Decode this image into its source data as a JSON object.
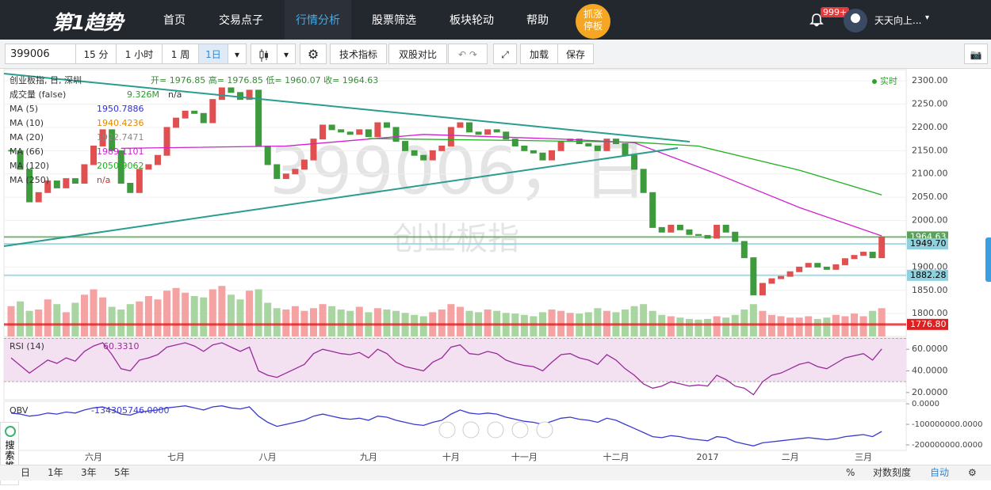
{
  "nav": {
    "logo": "第1趋势",
    "items": [
      "首页",
      "交易点子",
      "行情分析",
      "股票筛选",
      "板块轮动",
      "帮助"
    ],
    "active": 2,
    "hot_button": [
      "抓涨",
      "停板"
    ],
    "notification": "999+",
    "user": "天天向上..."
  },
  "toolbar": {
    "symbol": "399006",
    "periods": [
      "15 分",
      "1 小时",
      "1 周",
      "1日"
    ],
    "active_period": 3,
    "indicators": "技术指标",
    "compare": "双股对比",
    "load": "加载",
    "save": "保存"
  },
  "chart_data": {
    "type": "candlestick",
    "watermark_symbol": "399006，日",
    "watermark_name": "创业板指",
    "header": "创业板指, 日, 深圳",
    "ohlc_readout": "开= 1976.85 高= 1976.85 低= 1960.07 收= 1964.63",
    "realtime": "实时",
    "categories": [
      null,
      null,
      null,
      null,
      null,
      null,
      null,
      null,
      null,
      "六月",
      null,
      null,
      null,
      null,
      null,
      null,
      null,
      null,
      "七月",
      null,
      null,
      null,
      null,
      null,
      null,
      null,
      null,
      null,
      "八月",
      null,
      null,
      null,
      null,
      null,
      null,
      null,
      null,
      null,
      null,
      "九月",
      null,
      null,
      null,
      null,
      null,
      null,
      null,
      null,
      "十月",
      null,
      null,
      null,
      null,
      null,
      null,
      null,
      "十一月",
      null,
      null,
      null,
      null,
      null,
      null,
      null,
      null,
      null,
      "十二月",
      null,
      null,
      null,
      null,
      null,
      null,
      null,
      null,
      null,
      "2017",
      null,
      null,
      null,
      null,
      null,
      null,
      null,
      null,
      "二月",
      null,
      null,
      null,
      null,
      null,
      null,
      null,
      "三月",
      null,
      null
    ],
    "close": [
      2150,
      2110,
      2040,
      2060,
      2085,
      2070,
      2090,
      2080,
      2120,
      2160,
      2195,
      2150,
      2080,
      2060,
      2110,
      2120,
      2140,
      2200,
      2220,
      2235,
      2230,
      2210,
      2260,
      2285,
      2275,
      2260,
      2280,
      2160,
      2120,
      2090,
      2100,
      2110,
      2130,
      2175,
      2205,
      2195,
      2190,
      2185,
      2195,
      2180,
      2210,
      2200,
      2170,
      2150,
      2140,
      2130,
      2150,
      2160,
      2200,
      2210,
      2190,
      2185,
      2195,
      2190,
      2175,
      2160,
      2150,
      2145,
      2130,
      2150,
      2170,
      2175,
      2165,
      2160,
      2150,
      2175,
      2165,
      2140,
      2110,
      2060,
      1985,
      1975,
      1990,
      1980,
      1970,
      1968,
      1962,
      1990,
      1975,
      1955,
      1920,
      1840,
      1865,
      1875,
      1880,
      1890,
      1900,
      1908,
      1900,
      1895,
      1905,
      1918,
      1925,
      1932,
      1920,
      1964.63
    ],
    "up_color": "#e05050",
    "down_color": "#3d9a3d",
    "ylim": [
      1751,
      2324
    ],
    "yticks": [
      {
        "value": 1800,
        "label": "1800.00"
      },
      {
        "value": 1850,
        "label": "1850.00"
      },
      {
        "value": 1900,
        "label": "1900.00"
      },
      {
        "value": 1950,
        "label": "1950.00"
      },
      {
        "value": 2000,
        "label": "2000.00"
      },
      {
        "value": 2050,
        "label": "2050.00"
      },
      {
        "value": 2100,
        "label": "2100.00"
      },
      {
        "value": 2150,
        "label": "2150.00"
      },
      {
        "value": 2200,
        "label": "2200.00"
      },
      {
        "value": 2250,
        "label": "2250.00"
      },
      {
        "value": 2300,
        "label": "2300.00"
      }
    ],
    "grid": true,
    "moving_averages": [
      {
        "name": "MA (5)",
        "readout": "1950.7886",
        "color": "#3030d0"
      },
      {
        "name": "MA (10)",
        "readout": "1940.4236",
        "color": "#e08a00"
      },
      {
        "name": "MA (20)",
        "readout": "1922.7471",
        "color": "#888888"
      },
      {
        "name": "MA (66)",
        "readout": "1989.1101",
        "color": "#d020d0",
        "x": [
          12,
          30,
          45,
          60,
          68,
          77,
          86,
          95
        ],
        "values": [
          2155,
          2160,
          2185,
          2175,
          2167,
          2100,
          2028,
          1967
        ]
      },
      {
        "name": "MA (120)",
        "readout": "2050.9062",
        "color": "#20b020",
        "x": [
          39,
          55,
          68,
          75,
          86,
          95
        ],
        "values": [
          2176,
          2172,
          2168,
          2160,
          2108,
          2055
        ]
      },
      {
        "name": "MA (250)",
        "readout": "n/a",
        "color": "#d03030"
      }
    ],
    "price_lines": [
      {
        "value": 1964.63,
        "color": "#5aa05a",
        "text_color": "#ffffff"
      },
      {
        "value": 1949.7,
        "label": "1949.70",
        "color": "#8fd0de",
        "text_color": "#000000"
      },
      {
        "value": 1882.28,
        "color": "#8fd0de",
        "text_color": "#000000"
      },
      {
        "value": 1776.8,
        "label": "1776.80",
        "color": "#e02020",
        "text_color": "#ffffff"
      }
    ],
    "volume": {
      "name": "成交量 (false)",
      "readout": "9.326M",
      "extra": "n/a",
      "ylim": [
        0,
        100
      ],
      "up_color": "#f4a2a2",
      "down_color": "#a9d5a0",
      "values": [
        45,
        52,
        38,
        40,
        55,
        48,
        36,
        50,
        62,
        70,
        58,
        44,
        40,
        48,
        52,
        60,
        55,
        68,
        72,
        65,
        60,
        58,
        70,
        75,
        62,
        55,
        68,
        70,
        50,
        42,
        40,
        45,
        38,
        42,
        48,
        45,
        40,
        38,
        44,
        36,
        42,
        40,
        38,
        35,
        32,
        30,
        36,
        40,
        48,
        44,
        38,
        36,
        40,
        38,
        35,
        34,
        32,
        30,
        36,
        40,
        38,
        35,
        34,
        36,
        42,
        38,
        36,
        40,
        45,
        48,
        38,
        32,
        30,
        28,
        26,
        25,
        26,
        30,
        28,
        32,
        40,
        48,
        38,
        32,
        30,
        28,
        28,
        30,
        26,
        28,
        32,
        30,
        34,
        30,
        38,
        42
      ]
    },
    "rsi": {
      "name": "RSI (14)",
      "readout": "60.3310",
      "color": "#9a2a9a",
      "band": [
        30,
        70
      ],
      "ylim": [
        13.3,
        70.4
      ],
      "yticks": [
        {
          "value": 20,
          "label": "20.0000"
        },
        {
          "value": 40,
          "label": "40.0000"
        },
        {
          "value": 60,
          "label": "60.0000"
        }
      ],
      "values": [
        52,
        45,
        38,
        44,
        50,
        47,
        52,
        49,
        58,
        63,
        66,
        55,
        42,
        40,
        50,
        52,
        55,
        62,
        64,
        66,
        63,
        58,
        64,
        66,
        62,
        58,
        62,
        40,
        36,
        34,
        38,
        42,
        46,
        56,
        60,
        58,
        56,
        55,
        57,
        52,
        60,
        56,
        48,
        44,
        42,
        40,
        48,
        52,
        62,
        64,
        56,
        55,
        58,
        56,
        50,
        47,
        45,
        44,
        40,
        48,
        55,
        56,
        52,
        50,
        46,
        55,
        50,
        42,
        36,
        28,
        24,
        26,
        30,
        28,
        26,
        27,
        26,
        36,
        32,
        26,
        24,
        18,
        30,
        36,
        38,
        42,
        46,
        48,
        44,
        42,
        47,
        52,
        54,
        56,
        50,
        60.331
      ]
    },
    "obv": {
      "name": "OBV",
      "readout": "-134305746.0000",
      "color": "#3a3ad0",
      "ylim": [
        -227000000,
        12000000
      ],
      "yticks": [
        {
          "value": 0,
          "label": "0.0000"
        },
        {
          "value": -100000000,
          "label": "-100000000.0000"
        },
        {
          "value": -200000000,
          "label": "-200000000.0000"
        }
      ],
      "values": [
        -45000000.0,
        -50000000.0,
        -60000000.0,
        -55000000.0,
        -45000000.0,
        -50000000.0,
        -40000000.0,
        -45000000.0,
        -30000000.0,
        -20000000.0,
        -15000000.0,
        -30000000.0,
        -50000000.0,
        -55000000.0,
        -40000000.0,
        -35000000.0,
        -30000000.0,
        -20000000.0,
        -15000000.0,
        -10000000.0,
        -20000000.0,
        -30000000.0,
        -15000000.0,
        -10000000.0,
        -20000000.0,
        -25000000.0,
        -15000000.0,
        -60000000.0,
        -90000000.0,
        -110000000.0,
        -100000000.0,
        -90000000.0,
        -80000000.0,
        -60000000.0,
        -50000000.0,
        -60000000.0,
        -70000000.0,
        -75000000.0,
        -70000000.0,
        -80000000.0,
        -60000000.0,
        -65000000.0,
        -80000000.0,
        -90000000.0,
        -100000000.0,
        -105000000.0,
        -90000000.0,
        -80000000.0,
        -50000000.0,
        -30000000.0,
        -45000000.0,
        -50000000.0,
        -45000000.0,
        -50000000.0,
        -65000000.0,
        -75000000.0,
        -85000000.0,
        -90000000.0,
        -100000000.0,
        -85000000.0,
        -70000000.0,
        -65000000.0,
        -75000000.0,
        -80000000.0,
        -90000000.0,
        -70000000.0,
        -80000000.0,
        -100000000.0,
        -120000000.0,
        -140000000.0,
        -160000000.0,
        -165000000.0,
        -155000000.0,
        -160000000.0,
        -170000000.0,
        -175000000.0,
        -180000000.0,
        -160000000.0,
        -165000000.0,
        -185000000.0,
        -195000000.0,
        -205000000.0,
        -190000000.0,
        -185000000.0,
        -180000000.0,
        -175000000.0,
        -170000000.0,
        -165000000.0,
        -170000000.0,
        -175000000.0,
        -170000000.0,
        -160000000.0,
        -155000000.0,
        -150000000.0,
        -160000000.0,
        -134305746
      ]
    }
  },
  "bottom_bar": {
    "ranges": [
      "日",
      "1年",
      "3年",
      "5年"
    ],
    "options": [
      "%",
      "对数刻度",
      "自动"
    ],
    "active_option": 2
  },
  "side_widget": {
    "label": "搜索推荐"
  }
}
